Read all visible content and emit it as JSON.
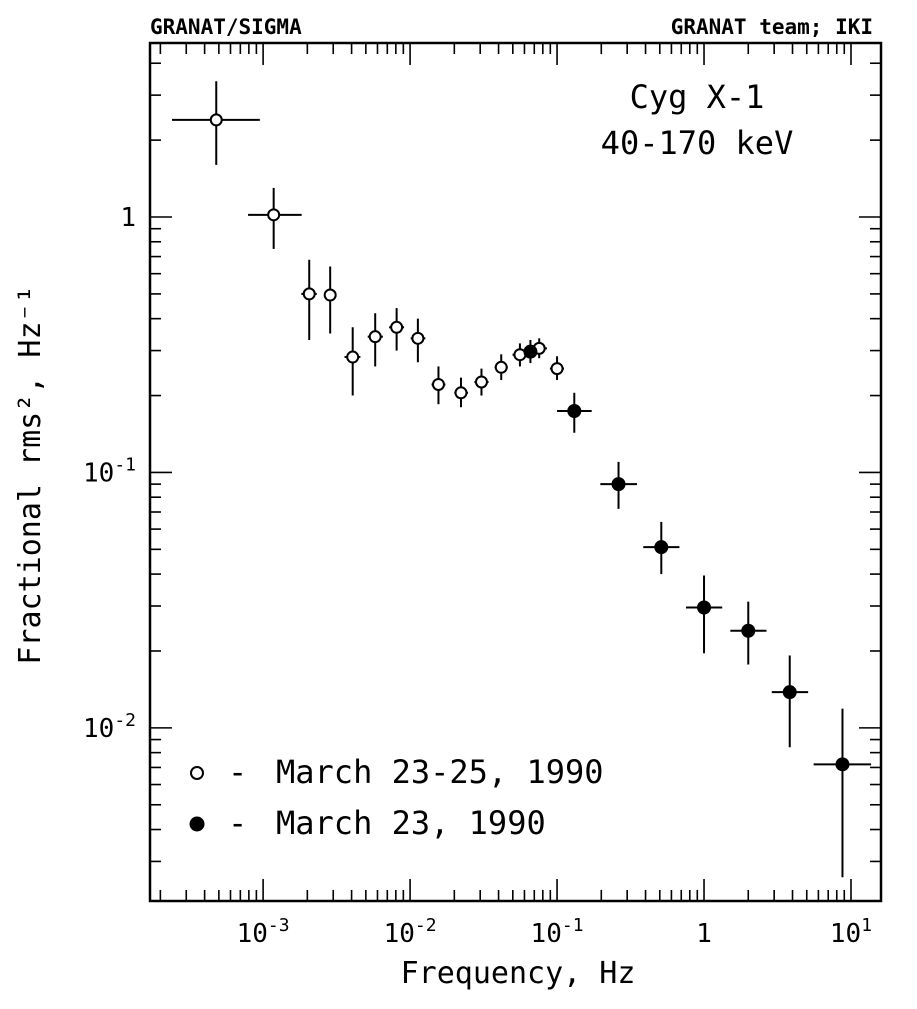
{
  "header": {
    "left": "GRANAT/SIGMA",
    "right": "GRANAT team; IKI"
  },
  "chart_data": {
    "type": "scatter",
    "xscale": "log",
    "yscale": "log",
    "xlim": [
      0.00017,
      16
    ],
    "ylim": [
      0.0021,
      4.8
    ],
    "xlabel": "Frequency, Hz",
    "ylabel": "Fractional rms², Hz⁻¹",
    "annotations": [
      "Cyg X-1",
      "40-170 keV"
    ],
    "xticks": [
      {
        "value": 0.001,
        "base": "10",
        "exp": "-3"
      },
      {
        "value": 0.01,
        "base": "10",
        "exp": "-2"
      },
      {
        "value": 0.1,
        "base": "10",
        "exp": "-1"
      },
      {
        "value": 1,
        "base": "1",
        "exp": ""
      },
      {
        "value": 10,
        "base": "10",
        "exp": "1"
      }
    ],
    "yticks": [
      {
        "value": 1,
        "base": "1",
        "exp": ""
      },
      {
        "value": 0.1,
        "base": "10",
        "exp": "-1"
      },
      {
        "value": 0.01,
        "base": "10",
        "exp": "-2"
      }
    ],
    "legend_position": "bottom-left",
    "series": [
      {
        "name": "March 23-25, 1990",
        "legend_symbol": "o",
        "legend_dash": "-",
        "marker": "open",
        "points": [
          {
            "x": 0.00048,
            "y": 2.4,
            "xerr": [
              0.00024,
              0.00095
            ],
            "yerr": [
              1.6,
              3.4
            ]
          },
          {
            "x": 0.00118,
            "y": 1.02,
            "xerr": [
              0.00079,
              0.00183
            ],
            "yerr": [
              0.75,
              1.3
            ]
          },
          {
            "x": 0.00206,
            "y": 0.5,
            "xerr": [
              0.00182,
              0.00232
            ],
            "yerr": [
              0.33,
              0.68
            ]
          },
          {
            "x": 0.00286,
            "y": 0.495,
            "xerr": [
              0.00262,
              0.00312
            ],
            "yerr": [
              0.35,
              0.64
            ]
          },
          {
            "x": 0.00407,
            "y": 0.283,
            "xerr": [
              0.00358,
              0.00459
            ],
            "yerr": [
              0.2,
              0.37
            ]
          },
          {
            "x": 0.00579,
            "y": 0.34,
            "xerr": [
              0.00515,
              0.00653
            ],
            "yerr": [
              0.26,
              0.42
            ]
          },
          {
            "x": 0.0081,
            "y": 0.37,
            "xerr": [
              0.0072,
              0.0091
            ],
            "yerr": [
              0.3,
              0.44
            ]
          },
          {
            "x": 0.0113,
            "y": 0.335,
            "xerr": [
              0.0101,
              0.0127
            ],
            "yerr": [
              0.27,
              0.4
            ]
          },
          {
            "x": 0.0156,
            "y": 0.221,
            "xerr": [
              0.014,
              0.0174
            ],
            "yerr": [
              0.185,
              0.26
            ]
          },
          {
            "x": 0.0222,
            "y": 0.205,
            "xerr": [
              0.02,
              0.0248
            ],
            "yerr": [
              0.18,
              0.235
            ]
          },
          {
            "x": 0.0306,
            "y": 0.226,
            "xerr": [
              0.0274,
              0.0342
            ],
            "yerr": [
              0.2,
              0.255
            ]
          },
          {
            "x": 0.0417,
            "y": 0.258,
            "xerr": [
              0.0376,
              0.0462
            ],
            "yerr": [
              0.23,
              0.29
            ]
          },
          {
            "x": 0.0559,
            "y": 0.289,
            "xerr": [
              0.0498,
              0.0628
            ],
            "yerr": [
              0.26,
              0.32
            ]
          },
          {
            "x": 0.0756,
            "y": 0.306,
            "xerr": [
              0.0669,
              0.0853
            ],
            "yerr": [
              0.28,
              0.335
            ]
          },
          {
            "x": 0.1,
            "y": 0.255,
            "xerr": [
              0.0894,
              0.1115
            ],
            "yerr": [
              0.23,
              0.285
            ]
          }
        ]
      },
      {
        "name": "March 23, 1990",
        "legend_symbol": "●",
        "legend_dash": "-",
        "marker": "filled",
        "points": [
          {
            "x": 0.0659,
            "y": 0.297,
            "xerr": [
              0.0571,
              0.0759
            ],
            "yerr": [
              0.268,
              0.33
            ]
          },
          {
            "x": 0.131,
            "y": 0.174,
            "xerr": [
              0.1,
              0.172
            ],
            "yerr": [
              0.143,
              0.205
            ]
          },
          {
            "x": 0.262,
            "y": 0.09,
            "xerr": [
              0.197,
              0.35
            ],
            "yerr": [
              0.072,
              0.11
            ]
          },
          {
            "x": 0.512,
            "y": 0.051,
            "xerr": [
              0.386,
              0.68
            ],
            "yerr": [
              0.04,
              0.064
            ]
          },
          {
            "x": 1.0,
            "y": 0.0296,
            "xerr": [
              0.754,
              1.33
            ],
            "yerr": [
              0.0196,
              0.0395
            ]
          },
          {
            "x": 2.0,
            "y": 0.024,
            "xerr": [
              1.51,
              2.66
            ],
            "yerr": [
              0.0177,
              0.0312
            ]
          },
          {
            "x": 3.83,
            "y": 0.0138,
            "xerr": [
              2.89,
              5.11
            ],
            "yerr": [
              0.0084,
              0.0192
            ]
          },
          {
            "x": 8.75,
            "y": 0.0072,
            "xerr": [
              5.57,
              13.7
            ],
            "yerr": [
              0.0026,
              0.0119
            ]
          }
        ]
      }
    ]
  }
}
